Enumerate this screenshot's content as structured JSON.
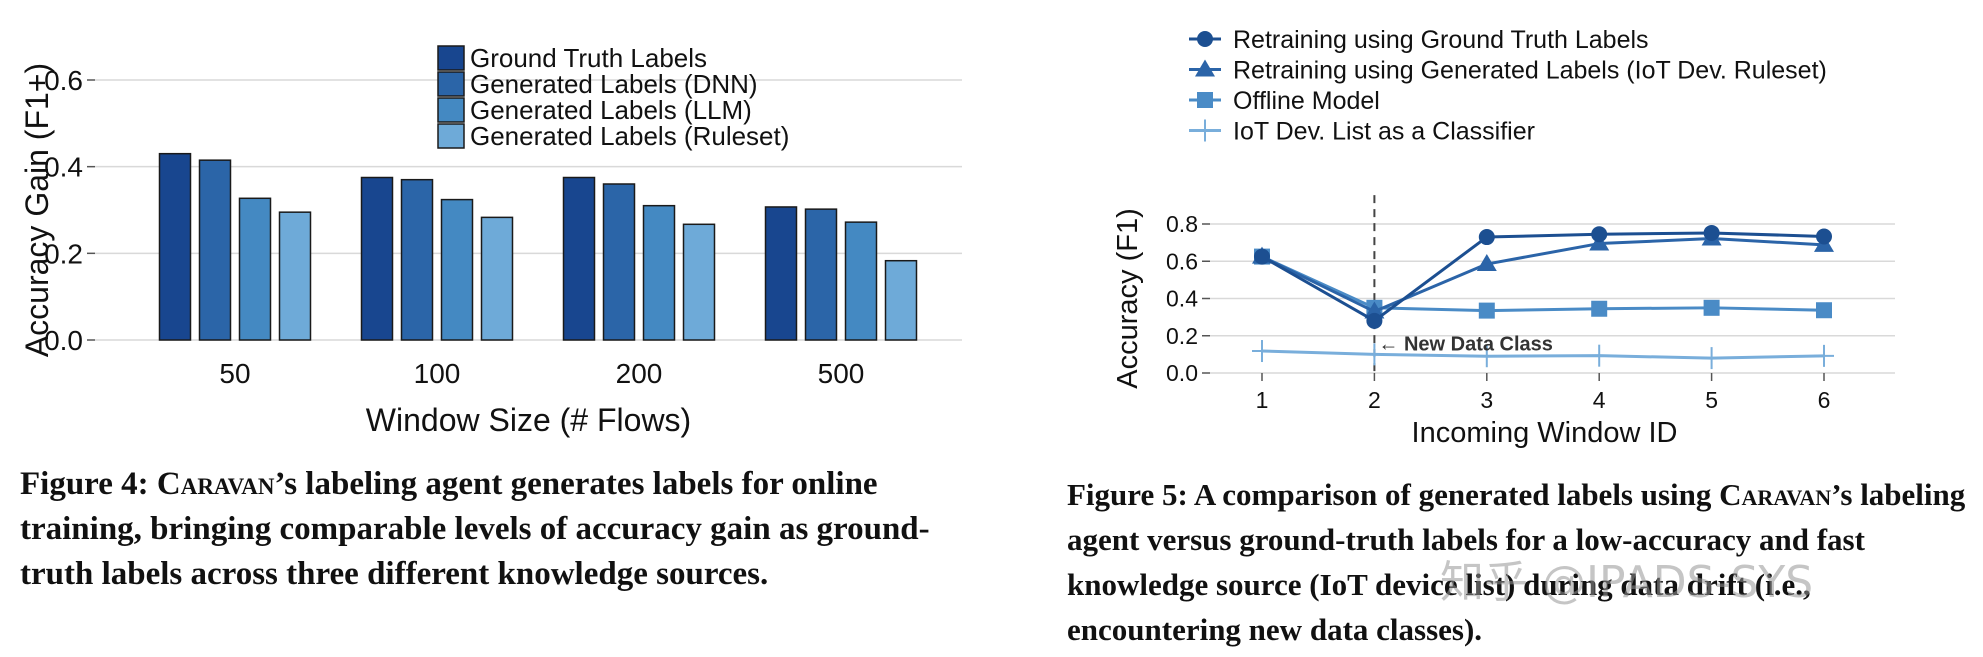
{
  "chart_data": [
    {
      "type": "bar",
      "title": "",
      "xlabel": "Window Size (# Flows)",
      "ylabel": "Accuracy Gain (F1+)",
      "ylim": [
        0,
        0.6
      ],
      "yticks": [
        0.0,
        0.2,
        0.4,
        0.6
      ],
      "ytick_labels": [
        "0.0",
        "0.2",
        "0.4",
        "0.6"
      ],
      "grid": true,
      "legend_position": "top-center",
      "categories": [
        "50",
        "100",
        "200",
        "500"
      ],
      "series": [
        {
          "name": "Ground Truth Labels",
          "color": "#18468f",
          "values": [
            0.43,
            0.375,
            0.375,
            0.307
          ]
        },
        {
          "name": "Generated Labels (DNN)",
          "color": "#2b65a8",
          "values": [
            0.415,
            0.37,
            0.36,
            0.302
          ]
        },
        {
          "name": "Generated Labels (LLM)",
          "color": "#4489c2",
          "values": [
            0.327,
            0.324,
            0.31,
            0.272
          ]
        },
        {
          "name": "Generated Labels (Ruleset)",
          "color": "#6eaad8",
          "values": [
            0.295,
            0.283,
            0.267,
            0.183
          ]
        }
      ]
    },
    {
      "type": "line",
      "title": "",
      "xlabel": "Incoming Window ID",
      "ylabel": "Accuracy (F1)",
      "ylim": [
        0,
        0.8
      ],
      "xlim": [
        1,
        6
      ],
      "x": [
        1,
        2,
        3,
        4,
        5,
        6
      ],
      "yticks": [
        0.0,
        0.2,
        0.4,
        0.6,
        0.8
      ],
      "ytick_labels": [
        "0.0",
        "0.2",
        "0.4",
        "0.6",
        "0.8"
      ],
      "grid": true,
      "legend_position": "top-left",
      "annotation": {
        "text": "New Data Class",
        "x": 2
      },
      "series": [
        {
          "name": "Retraining using Ground Truth Labels",
          "marker": "circle",
          "color": "#1c4f91",
          "values": [
            0.625,
            0.28,
            0.73,
            0.745,
            0.752,
            0.733
          ]
        },
        {
          "name": "Retraining using Generated Labels (IoT Dev. Ruleset)",
          "marker": "triangle",
          "color": "#2b64a8",
          "values": [
            0.625,
            0.33,
            0.585,
            0.695,
            0.722,
            0.688
          ]
        },
        {
          "name": "Offline Model",
          "marker": "square",
          "color": "#4a8bc6",
          "values": [
            0.625,
            0.35,
            0.335,
            0.345,
            0.35,
            0.337
          ]
        },
        {
          "name": "IoT Dev. List as a Classifier",
          "marker": "plus",
          "color": "#79aedb",
          "values": [
            0.118,
            0.1,
            0.09,
            0.093,
            0.08,
            0.092
          ]
        }
      ]
    }
  ],
  "captions": {
    "fig4": {
      "prefix": "Figure 4: ",
      "name": "Caravan",
      "text": "’s labeling agent generates labels for online training, bringing comparable levels of accuracy gain as ground-truth labels across three different knowledge sources."
    },
    "fig5": {
      "prefix": "Figure 5: A comparison of generated labels using ",
      "name": "Caravan",
      "text": "’s labeling agent versus ground-truth labels for a low-accuracy and fast knowledge source (IoT device list) during data drift (i.e., encountering new data classes)."
    }
  },
  "watermark": "知乎 @IPADS-SYS"
}
